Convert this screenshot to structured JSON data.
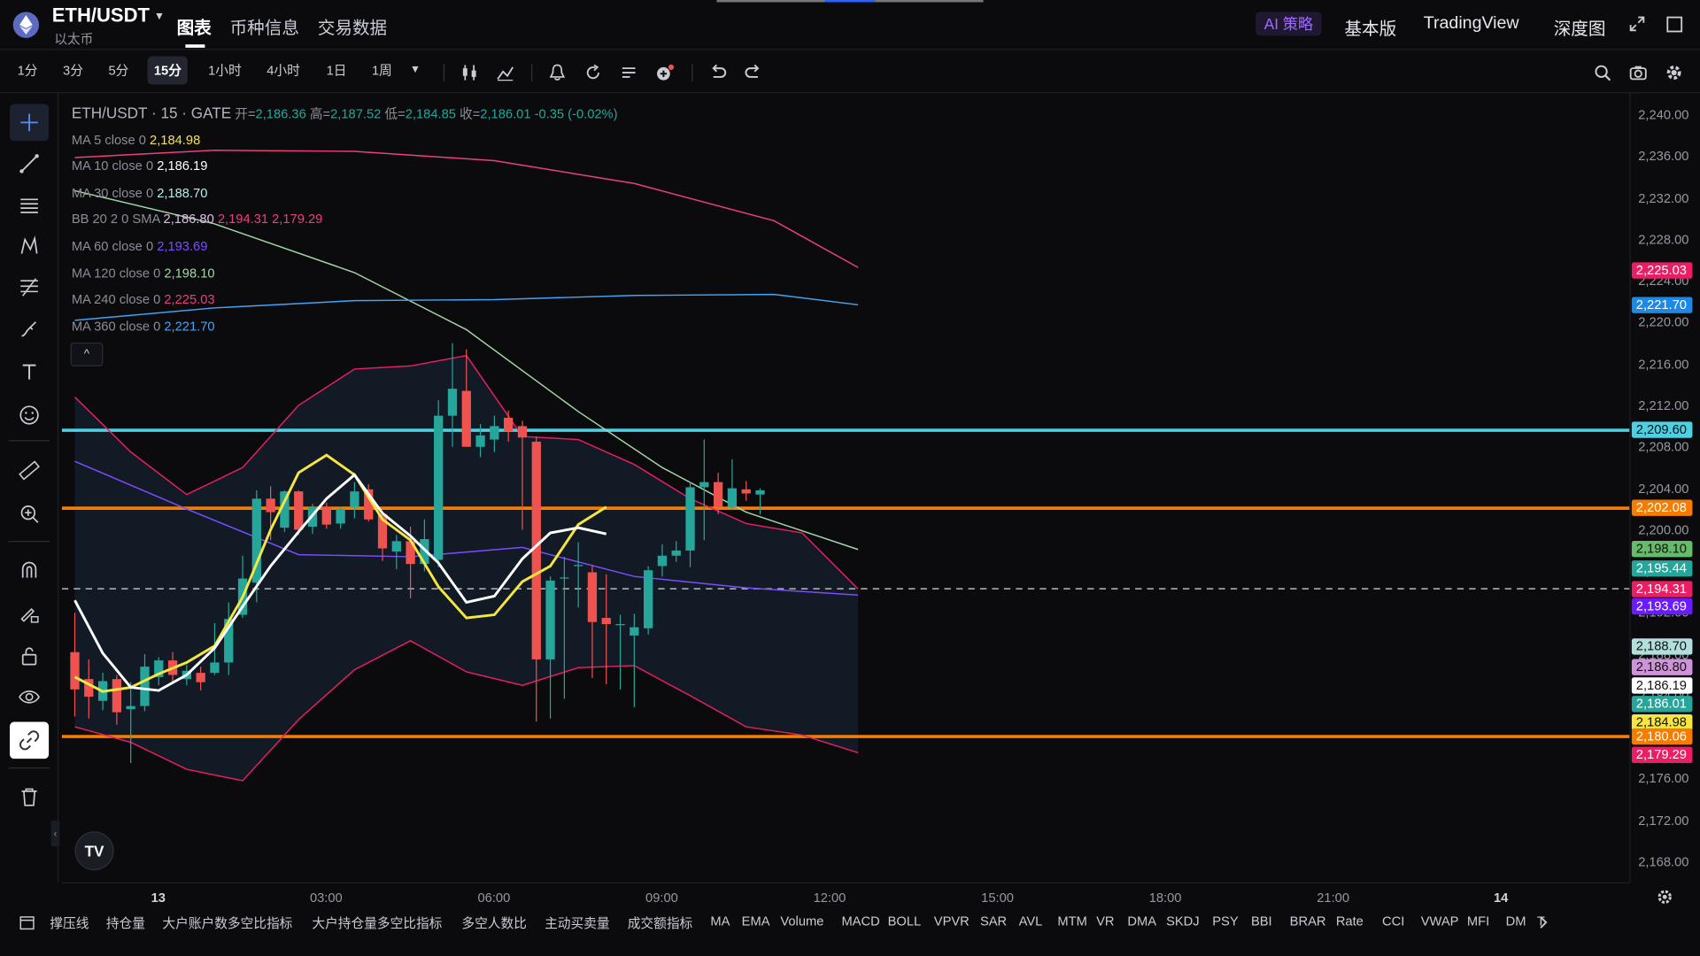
{
  "header": {
    "pair": "ETH/USDT",
    "pair_sub": "以太币",
    "tabs": [
      {
        "label": "图表",
        "active": true
      },
      {
        "label": "币种信息",
        "active": false
      },
      {
        "label": "交易数据",
        "active": false
      }
    ],
    "ai_label": "AI 策略",
    "links": [
      "基本版",
      "TradingView",
      "深度图"
    ]
  },
  "toolbar": {
    "timeframes": [
      "1分",
      "3分",
      "5分",
      "15分",
      "1小时",
      "4小时",
      "1日",
      "1周"
    ],
    "active_timeframe": "15分"
  },
  "legend": {
    "title": "ETH/USDT · 15 · GATE",
    "ohlc": {
      "open_label": "开=",
      "open": "2,186.36",
      "high_label": "高=",
      "high": "2,187.52",
      "low_label": "低=",
      "low": "2,184.85",
      "close_label": "收=",
      "close": "2,186.01",
      "change": "-0.35 (-0.02%)"
    },
    "studies": [
      {
        "name": "MA 5 close 0",
        "values": [
          "2,184.98"
        ],
        "colors": [
          "#f5e642"
        ]
      },
      {
        "name": "MA 10 close 0",
        "values": [
          "2,186.19"
        ],
        "colors": [
          "#ffffff"
        ]
      },
      {
        "name": "MA 30 close 0",
        "values": [
          "2,188.70"
        ],
        "colors": [
          "#b2f0e8"
        ]
      },
      {
        "name": "BB 20 2 0 SMA",
        "values": [
          "2,186.80",
          "2,194.31",
          "2,179.29"
        ],
        "colors": [
          "#e1bee7",
          "#ec407a",
          "#ec407a"
        ]
      },
      {
        "name": "MA 60 close 0",
        "values": [
          "2,193.69"
        ],
        "colors": [
          "#7c4dff"
        ]
      },
      {
        "name": "MA 120 close 0",
        "values": [
          "2,198.10"
        ],
        "colors": [
          "#a5d6a7"
        ]
      },
      {
        "name": "MA 240 close 0",
        "values": [
          "2,225.03"
        ],
        "colors": [
          "#ec407a"
        ]
      },
      {
        "name": "MA 360 close 0",
        "values": [
          "2,221.70"
        ],
        "colors": [
          "#42a5f5"
        ]
      }
    ]
  },
  "price_axis": {
    "ticks": [
      "2,240.00",
      "2,236.00",
      "2,232.00",
      "2,228.00",
      "2,224.00",
      "2,220.00",
      "2,216.00",
      "2,212.00",
      "2,208.00",
      "2,204.00",
      "2,200.00",
      "2,196.00",
      "2,192.00",
      "2,188.00",
      "2,184.00",
      "2,180.00",
      "2,176.00",
      "2,172.00",
      "2,168.00"
    ],
    "tick_values": [
      2240,
      2236,
      2232,
      2228,
      2224,
      2220,
      2216,
      2212,
      2208,
      2204,
      2200,
      2196,
      2192,
      2188,
      2184,
      2180,
      2176,
      2172,
      2168
    ],
    "tags": [
      {
        "text": "2,225.03",
        "value": 2225.03,
        "bg": "#e91e63"
      },
      {
        "text": "2,221.70",
        "value": 2221.7,
        "bg": "#1e88e5"
      },
      {
        "text": "2,209.60",
        "value": 2209.6,
        "bg": "#4dd0e1"
      },
      {
        "text": "2,202.08",
        "value": 2202.08,
        "bg": "#f57c00"
      },
      {
        "text": "2,198.10",
        "value": 2198.1,
        "bg": "#66bb6a"
      },
      {
        "text": "2,195.44",
        "value": 2196.3,
        "bg": "#26a69a"
      },
      {
        "text": "2,194.31",
        "value": 2194.31,
        "bg": "#e91e63"
      },
      {
        "text": "2,193.69",
        "value": 2192.6,
        "bg": "#6a1bff"
      },
      {
        "text": "2,188.70",
        "value": 2188.7,
        "bg": "#b2dfdb"
      },
      {
        "text": "2,186.80",
        "value": 2186.8,
        "bg": "#ce93d8"
      },
      {
        "text": "2,186.19",
        "value": 2185.0,
        "bg": "#ffffff"
      },
      {
        "text": "2,186.01",
        "value": 2183.2,
        "bg": "#26a69a"
      },
      {
        "text": "2,184.98",
        "value": 2181.4,
        "bg": "#f5e642"
      },
      {
        "text": "2,180.06",
        "value": 2180.06,
        "bg": "#f57c00"
      },
      {
        "text": "2,179.29",
        "value": 2178.3,
        "bg": "#e91e63"
      }
    ]
  },
  "time_axis": {
    "labels": [
      {
        "text": "13",
        "bold": true,
        "bar": 0
      },
      {
        "text": "03:00",
        "bold": false,
        "bar": 12
      },
      {
        "text": "06:00",
        "bold": false,
        "bar": 24
      },
      {
        "text": "09:00",
        "bold": false,
        "bar": 36
      },
      {
        "text": "12:00",
        "bold": false,
        "bar": 48
      },
      {
        "text": "15:00",
        "bold": false,
        "bar": 60
      },
      {
        "text": "18:00",
        "bold": false,
        "bar": 72
      },
      {
        "text": "21:00",
        "bold": false,
        "bar": 84
      },
      {
        "text": "14",
        "bold": true,
        "bar": 96
      }
    ]
  },
  "chart_data": {
    "type": "candlestick",
    "symbol": "ETH/USDT",
    "interval": "15分",
    "exchange": "GATE",
    "y_range": [
      2166,
      2242
    ],
    "bar_interval_minutes": 15,
    "horizontal_lines": [
      {
        "value": 2209.6,
        "color": "#4dd0e1"
      },
      {
        "value": 2202.08,
        "color": "#f57c00"
      },
      {
        "value": 2180.06,
        "color": "#f57c00"
      },
      {
        "value": 2194.31,
        "color": "#bbbbbb",
        "dashed": true
      }
    ],
    "candles": [
      {
        "t": "00:00",
        "o": 2188.2,
        "h": 2192.0,
        "l": 2182.0,
        "c": 2184.6
      },
      {
        "t": "00:15",
        "o": 2185.6,
        "h": 2187.5,
        "l": 2181.8,
        "c": 2183.9
      },
      {
        "t": "00:30",
        "o": 2183.5,
        "h": 2186.2,
        "l": 2182.6,
        "c": 2185.4
      },
      {
        "t": "00:45",
        "o": 2185.6,
        "h": 2186.0,
        "l": 2181.2,
        "c": 2182.4
      },
      {
        "t": "01:00",
        "o": 2182.7,
        "h": 2185.3,
        "l": 2177.5,
        "c": 2183.0
      },
      {
        "t": "01:15",
        "o": 2183.0,
        "h": 2188.0,
        "l": 2182.5,
        "c": 2186.8
      },
      {
        "t": "01:30",
        "o": 2185.8,
        "h": 2187.7,
        "l": 2185.0,
        "c": 2187.4
      },
      {
        "t": "01:45",
        "o": 2187.4,
        "h": 2188.2,
        "l": 2185.2,
        "c": 2186.0
      },
      {
        "t": "02:00",
        "o": 2185.6,
        "h": 2187.0,
        "l": 2185.0,
        "c": 2186.4
      },
      {
        "t": "02:15",
        "o": 2186.2,
        "h": 2186.8,
        "l": 2184.5,
        "c": 2185.3
      },
      {
        "t": "02:30",
        "o": 2186.2,
        "h": 2191.0,
        "l": 2186.0,
        "c": 2187.2
      },
      {
        "t": "02:45",
        "o": 2187.2,
        "h": 2193.0,
        "l": 2186.0,
        "c": 2191.4
      },
      {
        "t": "03:00",
        "o": 2191.8,
        "h": 2197.5,
        "l": 2191.5,
        "c": 2195.3
      },
      {
        "t": "03:15",
        "o": 2194.9,
        "h": 2203.8,
        "l": 2193.0,
        "c": 2203.0
      },
      {
        "t": "03:30",
        "o": 2203.0,
        "h": 2204.2,
        "l": 2199.0,
        "c": 2201.7
      },
      {
        "t": "03:45",
        "o": 2200.2,
        "h": 2203.8,
        "l": 2199.8,
        "c": 2203.7
      },
      {
        "t": "04:00",
        "o": 2203.7,
        "h": 2203.8,
        "l": 2199.5,
        "c": 2200.0
      },
      {
        "t": "04:15",
        "o": 2200.3,
        "h": 2202.5,
        "l": 2199.6,
        "c": 2202.2
      },
      {
        "t": "04:30",
        "o": 2202.2,
        "h": 2202.6,
        "l": 2200.1,
        "c": 2200.5
      },
      {
        "t": "04:45",
        "o": 2200.6,
        "h": 2202.2,
        "l": 2200.1,
        "c": 2202.0
      },
      {
        "t": "05:00",
        "o": 2202.2,
        "h": 2204.6,
        "l": 2201.1,
        "c": 2203.7
      },
      {
        "t": "05:15",
        "o": 2203.9,
        "h": 2204.4,
        "l": 2200.8,
        "c": 2201.0
      },
      {
        "t": "05:30",
        "o": 2201.5,
        "h": 2201.6,
        "l": 2197.0,
        "c": 2198.2
      },
      {
        "t": "05:45",
        "o": 2197.9,
        "h": 2199.5,
        "l": 2196.2,
        "c": 2198.9
      },
      {
        "t": "06:00",
        "o": 2198.9,
        "h": 2200.3,
        "l": 2193.4,
        "c": 2196.7
      },
      {
        "t": "06:15",
        "o": 2196.7,
        "h": 2201.0,
        "l": 2196.0,
        "c": 2199.1
      },
      {
        "t": "06:30",
        "o": 2197.1,
        "h": 2212.5,
        "l": 2196.4,
        "c": 2211.0
      },
      {
        "t": "06:45",
        "o": 2211.0,
        "h": 2218.0,
        "l": 2208.0,
        "c": 2213.6
      },
      {
        "t": "07:00",
        "o": 2213.4,
        "h": 2217.4,
        "l": 2208.0,
        "c": 2208.0
      },
      {
        "t": "07:15",
        "o": 2208.0,
        "h": 2210.2,
        "l": 2207.0,
        "c": 2209.1
      },
      {
        "t": "07:30",
        "o": 2208.7,
        "h": 2211.0,
        "l": 2207.5,
        "c": 2210.0
      },
      {
        "t": "07:45",
        "o": 2210.8,
        "h": 2211.5,
        "l": 2208.5,
        "c": 2209.5
      },
      {
        "t": "08:00",
        "o": 2210.0,
        "h": 2210.5,
        "l": 2200.0,
        "c": 2208.9
      },
      {
        "t": "08:15",
        "o": 2208.5,
        "h": 2209.0,
        "l": 2181.5,
        "c": 2187.5
      },
      {
        "t": "08:30",
        "o": 2187.5,
        "h": 2195.5,
        "l": 2181.8,
        "c": 2195.1
      },
      {
        "t": "08:45",
        "o": 2195.3,
        "h": 2197.4,
        "l": 2183.7,
        "c": 2195.4
      },
      {
        "t": "09:00",
        "o": 2196.5,
        "h": 2198.8,
        "l": 2192.5,
        "c": 2196.6
      },
      {
        "t": "09:15",
        "o": 2195.9,
        "h": 2196.6,
        "l": 2185.7,
        "c": 2191.1
      },
      {
        "t": "09:30",
        "o": 2191.5,
        "h": 2195.7,
        "l": 2185.1,
        "c": 2190.9
      },
      {
        "t": "09:45",
        "o": 2190.8,
        "h": 2191.8,
        "l": 2184.6,
        "c": 2190.9
      },
      {
        "t": "10:00",
        "o": 2189.8,
        "h": 2191.9,
        "l": 2182.9,
        "c": 2190.6
      },
      {
        "t": "10:15",
        "o": 2190.5,
        "h": 2196.5,
        "l": 2189.9,
        "c": 2196.1
      },
      {
        "t": "10:30",
        "o": 2196.5,
        "h": 2198.6,
        "l": 2195.5,
        "c": 2197.5
      },
      {
        "t": "10:45",
        "o": 2197.5,
        "h": 2198.9,
        "l": 2196.9,
        "c": 2198.0
      },
      {
        "t": "11:00",
        "o": 2198.0,
        "h": 2204.6,
        "l": 2196.4,
        "c": 2204.1
      },
      {
        "t": "11:15",
        "o": 2204.1,
        "h": 2208.7,
        "l": 2199.0,
        "c": 2204.6
      },
      {
        "t": "11:30",
        "o": 2204.6,
        "h": 2205.5,
        "l": 2201.5,
        "c": 2202.2
      },
      {
        "t": "11:45",
        "o": 2202.2,
        "h": 2206.8,
        "l": 2201.9,
        "c": 2204.0
      },
      {
        "t": "12:00",
        "o": 2203.9,
        "h": 2204.7,
        "l": 2202.8,
        "c": 2203.5
      },
      {
        "t": "12:15",
        "o": 2203.4,
        "h": 2204.0,
        "l": 2201.5,
        "c": 2203.8
      }
    ],
    "series": [
      {
        "name": "MA 5 close 0",
        "color": "#f5e642",
        "points": [
          [
            0,
            2185.8
          ],
          [
            2,
            2184.4
          ],
          [
            4,
            2184.8
          ],
          [
            6,
            2186.1
          ],
          [
            8,
            2187.2
          ],
          [
            10,
            2188.8
          ],
          [
            12,
            2193.5
          ],
          [
            14,
            2200.0
          ],
          [
            16,
            2205.5
          ],
          [
            18,
            2207.2
          ],
          [
            20,
            2205.3
          ],
          [
            22,
            2201.0
          ],
          [
            24,
            2199.0
          ],
          [
            26,
            2194.5
          ],
          [
            28,
            2191.5
          ],
          [
            30,
            2191.8
          ],
          [
            32,
            2195.0
          ],
          [
            34,
            2196.5
          ],
          [
            36,
            2200.5
          ],
          [
            38,
            2202.2
          ]
        ]
      },
      {
        "name": "MA 10 close 0",
        "color": "#ffffff",
        "points": [
          [
            0,
            2193.2
          ],
          [
            2,
            2188.1
          ],
          [
            4,
            2184.8
          ],
          [
            6,
            2184.5
          ],
          [
            8,
            2186.0
          ],
          [
            10,
            2188.6
          ],
          [
            12,
            2192.6
          ],
          [
            14,
            2196.5
          ],
          [
            16,
            2199.8
          ],
          [
            18,
            2203.0
          ],
          [
            20,
            2205.3
          ],
          [
            22,
            2201.6
          ],
          [
            24,
            2199.4
          ],
          [
            26,
            2196.8
          ],
          [
            28,
            2193.0
          ],
          [
            30,
            2193.6
          ],
          [
            32,
            2197.2
          ],
          [
            34,
            2199.7
          ],
          [
            36,
            2200.2
          ],
          [
            38,
            2199.6
          ]
        ]
      },
      {
        "name": "MA 60 close 0",
        "color": "#7c4dff",
        "points": [
          [
            0,
            2206.6
          ],
          [
            8,
            2202.0
          ],
          [
            16,
            2197.6
          ],
          [
            24,
            2197.4
          ],
          [
            32,
            2198.3
          ],
          [
            40,
            2195.5
          ],
          [
            48,
            2194.4
          ],
          [
            56,
            2193.7
          ]
        ]
      },
      {
        "name": "MA 120 close 0",
        "color": "#a5d6a7",
        "points": [
          [
            0,
            2232.7
          ],
          [
            10,
            2229.5
          ],
          [
            20,
            2224.8
          ],
          [
            28,
            2219.3
          ],
          [
            36,
            2211.4
          ],
          [
            42,
            2206.0
          ],
          [
            48,
            2201.7
          ],
          [
            56,
            2198.1
          ]
        ]
      },
      {
        "name": "MA 240 close 0",
        "color": "#ec407a",
        "points": [
          [
            0,
            2235.9
          ],
          [
            10,
            2236.6
          ],
          [
            20,
            2236.5
          ],
          [
            30,
            2235.6
          ],
          [
            40,
            2233.4
          ],
          [
            50,
            2229.8
          ],
          [
            56,
            2225.3
          ]
        ]
      },
      {
        "name": "MA 360 close 0",
        "color": "#42a5f5",
        "points": [
          [
            0,
            2220.2
          ],
          [
            10,
            2221.4
          ],
          [
            20,
            2222.1
          ],
          [
            30,
            2222.2
          ],
          [
            40,
            2222.6
          ],
          [
            50,
            2222.7
          ],
          [
            56,
            2221.7
          ]
        ]
      },
      {
        "name": "BB upper",
        "color": "#e91e63",
        "points": [
          [
            0,
            2212.8
          ],
          [
            4,
            2207.5
          ],
          [
            8,
            2203.4
          ],
          [
            12,
            2206.0
          ],
          [
            16,
            2212.0
          ],
          [
            20,
            2215.5
          ],
          [
            24,
            2215.8
          ],
          [
            28,
            2216.8
          ],
          [
            32,
            2209.0
          ],
          [
            36,
            2208.7
          ],
          [
            40,
            2206.3
          ],
          [
            44,
            2203.0
          ],
          [
            48,
            2200.6
          ],
          [
            52,
            2199.7
          ],
          [
            56,
            2194.3
          ]
        ]
      },
      {
        "name": "BB lower",
        "color": "#e91e63",
        "points": [
          [
            0,
            2181.0
          ],
          [
            4,
            2179.5
          ],
          [
            8,
            2176.9
          ],
          [
            12,
            2175.8
          ],
          [
            16,
            2181.7
          ],
          [
            20,
            2186.5
          ],
          [
            24,
            2189.3
          ],
          [
            28,
            2186.3
          ],
          [
            32,
            2185.0
          ],
          [
            36,
            2186.7
          ],
          [
            40,
            2186.9
          ],
          [
            44,
            2184.0
          ],
          [
            48,
            2181.0
          ],
          [
            52,
            2180.2
          ],
          [
            56,
            2178.5
          ]
        ]
      }
    ]
  },
  "bottom_indicators": [
    "撑压线",
    "持仓量",
    "大户账户数多空比指标",
    "大户持仓量多空比指标",
    "多空人数比",
    "主动买卖量",
    "成交额指标",
    "MA",
    "EMA",
    "Volume",
    "MACD",
    "BOLL",
    "VPVR",
    "SAR",
    "AVL",
    "MTM",
    "VR",
    "DMA",
    "SKDJ",
    "PSY",
    "BBI",
    "BRAR",
    "Rate",
    "CCI",
    "VWAP",
    "MFI",
    "DM",
    "T"
  ],
  "colors": {
    "up": "#26a69a",
    "down": "#ef5350"
  }
}
